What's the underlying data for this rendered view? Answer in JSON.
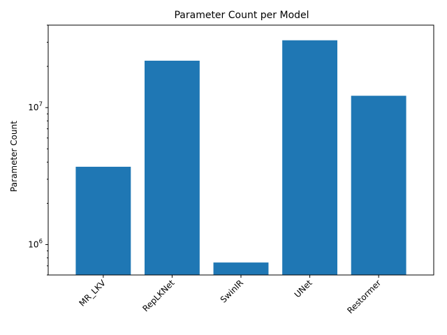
{
  "chart_data": {
    "type": "bar",
    "title": "Parameter Count per Model",
    "xlabel": "",
    "ylabel": "Parameter Count",
    "yscale": "log",
    "ylim": [
      600000,
      40000000
    ],
    "grid": false,
    "legend": "none",
    "bar_color": "#1f77b4",
    "categories": [
      "MR_LKV",
      "RepLKNet",
      "SwinIR",
      "UNet",
      "Restormer"
    ],
    "values": [
      3700000,
      22000000,
      740000,
      31000000,
      12200000
    ],
    "y_major_ticks": [
      {
        "value": 1000000,
        "base": "10",
        "exp": "6"
      },
      {
        "value": 10000000,
        "base": "10",
        "exp": "7"
      }
    ]
  }
}
